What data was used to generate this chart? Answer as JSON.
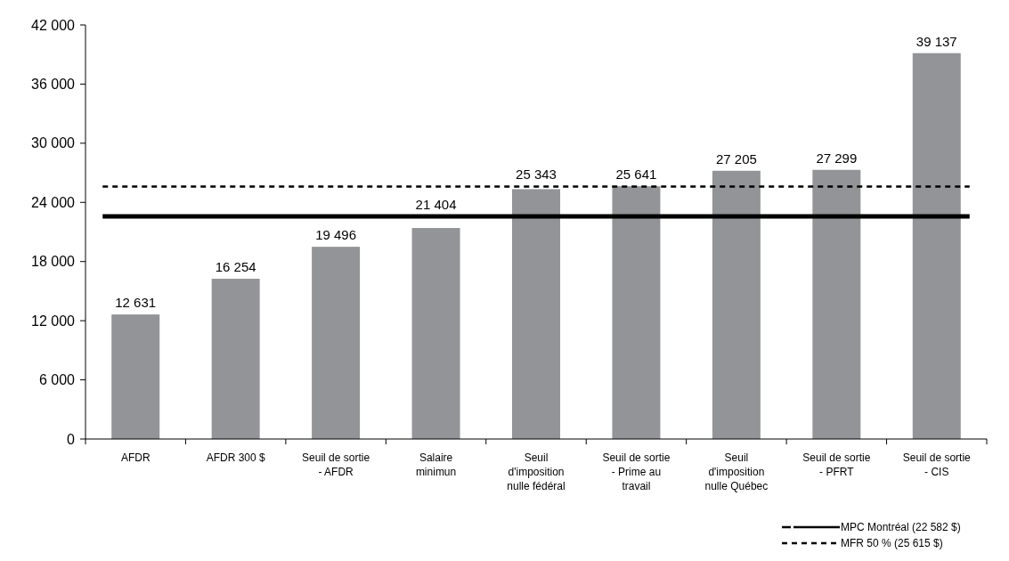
{
  "chart_data": {
    "type": "bar",
    "categories": [
      "AFDR",
      "AFDR 300 $",
      "Seuil de sortie\n- AFDR",
      "Salaire\nminimun",
      "Seuil\nd'imposition\nnulle fédéral",
      "Seuil de sortie\n- Prime au\ntravail",
      "Seuil\nd'imposition\nnulle Québec",
      "Seuil de sortie\n- PFRT",
      "Seuil de sortie\n- CIS"
    ],
    "values": [
      12631,
      16254,
      19496,
      21404,
      25343,
      25641,
      27205,
      27299,
      39137
    ],
    "value_labels": [
      "12 631",
      "16 254",
      "19 496",
      "21 404",
      "25 343",
      "25 641",
      "27 205",
      "27 299",
      "39 137"
    ],
    "color": "#929497",
    "ylim": [
      0,
      42000
    ],
    "yticks": [
      {
        "value": 0,
        "label": "0"
      },
      {
        "value": 6000,
        "label": "6 000"
      },
      {
        "value": 12000,
        "label": "12 000"
      },
      {
        "value": 18000,
        "label": "18 000"
      },
      {
        "value": 24000,
        "label": "24 000"
      },
      {
        "value": 30000,
        "label": "30 000"
      },
      {
        "value": 36000,
        "label": "36 000"
      },
      {
        "value": 42000,
        "label": "42 000"
      }
    ],
    "ref_lines": [
      {
        "axis": "y",
        "value": 22582,
        "label": "MPC Montréal (22 582 $)",
        "color": "#000000",
        "line_style": "solid"
      },
      {
        "axis": "y",
        "value": 25615,
        "label": "MFR 50 % (25 615 $)",
        "color": "#000000",
        "line_style": "dashed"
      }
    ],
    "legend": "bottom right"
  }
}
